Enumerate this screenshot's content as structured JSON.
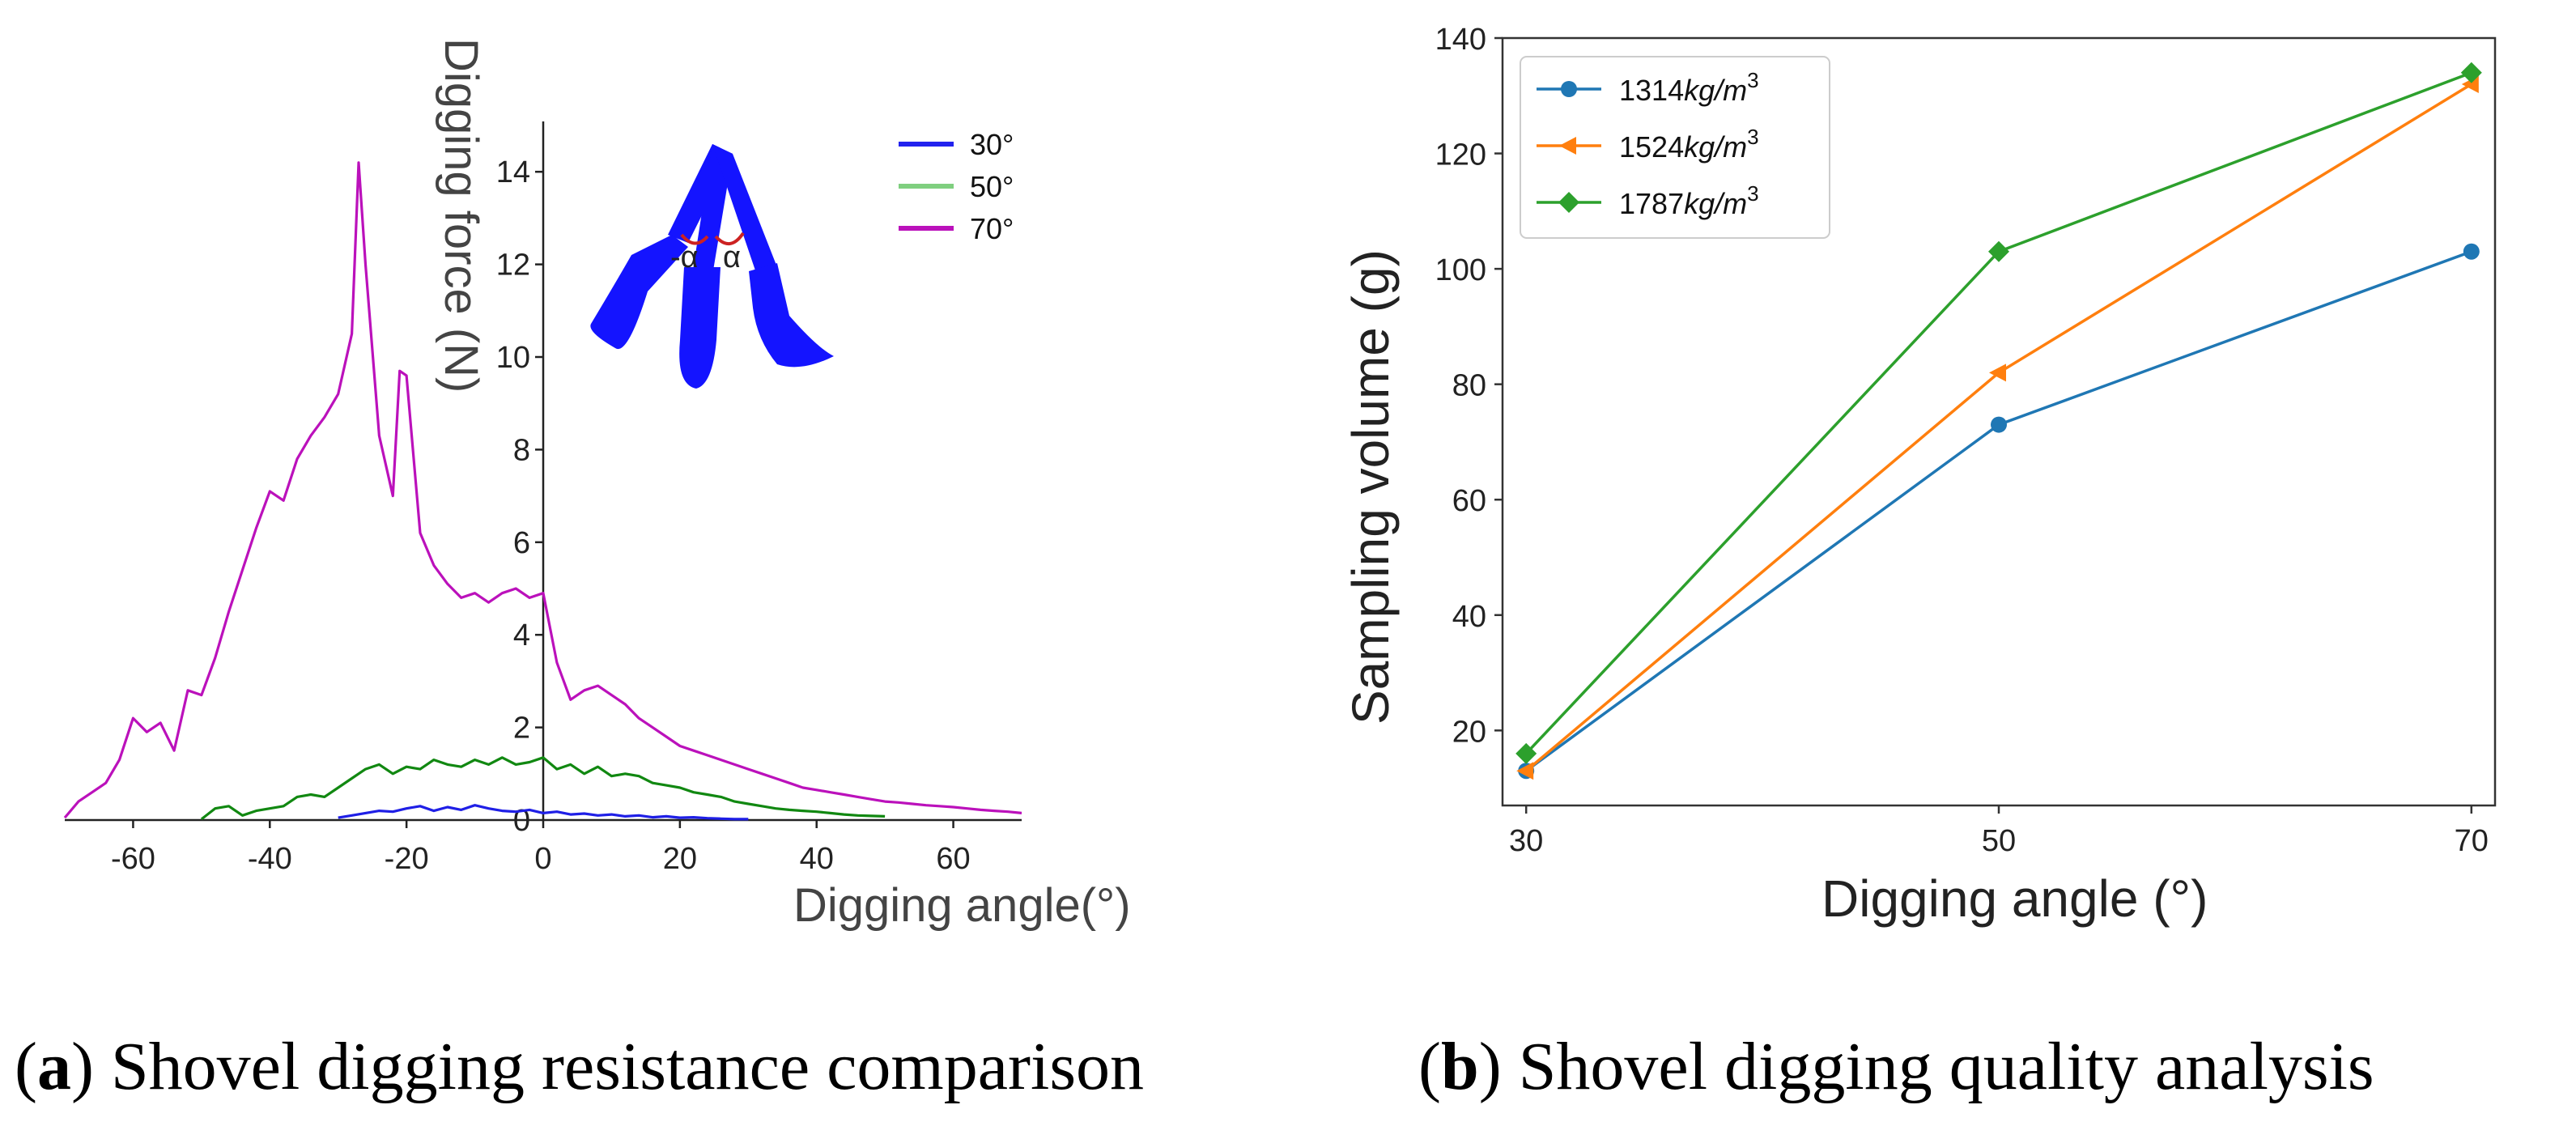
{
  "colors": {
    "s30": "#1f1fe6",
    "s50": "#118811",
    "s70": "#bb11bb",
    "l30": "#2222ee",
    "l50": "#7fcf7f",
    "l70": "#bb11bb",
    "c1314": "#1f77b4",
    "c1524": "#ff7f0e",
    "c1787": "#2ca02c"
  },
  "captions": {
    "a_letter": "a",
    "a_text": " Shovel digging resistance comparison",
    "b_letter": "b",
    "b_text": " Shovel digging quality analysis"
  },
  "chart_data": [
    {
      "type": "line",
      "panel": "a",
      "title": "",
      "xlabel": "Digging angle(°)",
      "ylabel": "Digging force (N)",
      "xlim": [
        -70,
        70
      ],
      "ylim": [
        0,
        15
      ],
      "xticks": [
        -60,
        -40,
        -20,
        0,
        20,
        40,
        60
      ],
      "xtick_labels": [
        "-60",
        "-40",
        "-20",
        "0",
        "20",
        "40",
        "60"
      ],
      "yticks": [
        2,
        4,
        6,
        8,
        10,
        12,
        14
      ],
      "ytick_labels": [
        "2",
        "4",
        "6",
        "8",
        "10",
        "12",
        "14"
      ],
      "legend": [
        "30°",
        "50°",
        "70°"
      ],
      "legend_position": "top-right",
      "inset_labels": [
        "-α",
        "α"
      ],
      "series": [
        {
          "name": "30°",
          "x": [
            -30,
            -28,
            -26,
            -24,
            -22,
            -20,
            -18,
            -16,
            -14,
            -12,
            -10,
            -8,
            -6,
            -4,
            -2,
            0,
            2,
            4,
            6,
            8,
            10,
            12,
            14,
            16,
            18,
            20,
            22,
            24,
            26,
            28,
            30
          ],
          "y": [
            0.05,
            0.1,
            0.15,
            0.2,
            0.18,
            0.25,
            0.3,
            0.2,
            0.28,
            0.22,
            0.32,
            0.25,
            0.2,
            0.18,
            0.22,
            0.15,
            0.18,
            0.12,
            0.14,
            0.1,
            0.12,
            0.08,
            0.1,
            0.06,
            0.08,
            0.05,
            0.06,
            0.04,
            0.03,
            0.02,
            0.02
          ]
        },
        {
          "name": "50°",
          "x": [
            -50,
            -48,
            -46,
            -44,
            -42,
            -40,
            -38,
            -36,
            -34,
            -32,
            -30,
            -28,
            -26,
            -24,
            -22,
            -20,
            -18,
            -16,
            -14,
            -12,
            -10,
            -8,
            -6,
            -4,
            -2,
            0,
            2,
            4,
            6,
            8,
            10,
            12,
            14,
            16,
            18,
            20,
            22,
            24,
            26,
            28,
            30,
            32,
            34,
            36,
            38,
            40,
            42,
            44,
            46,
            48,
            50
          ],
          "y": [
            0.02,
            0.25,
            0.3,
            0.1,
            0.2,
            0.25,
            0.3,
            0.5,
            0.55,
            0.5,
            0.7,
            0.9,
            1.1,
            1.2,
            1.0,
            1.15,
            1.1,
            1.3,
            1.2,
            1.15,
            1.3,
            1.2,
            1.35,
            1.2,
            1.25,
            1.35,
            1.1,
            1.2,
            1.0,
            1.15,
            0.95,
            1.0,
            0.95,
            0.8,
            0.75,
            0.7,
            0.6,
            0.55,
            0.5,
            0.4,
            0.35,
            0.3,
            0.25,
            0.22,
            0.2,
            0.18,
            0.15,
            0.12,
            0.1,
            0.09,
            0.08
          ]
        },
        {
          "name": "70°",
          "x": [
            -70,
            -68,
            -66,
            -64,
            -62,
            -60,
            -58,
            -56,
            -54,
            -52,
            -50,
            -48,
            -46,
            -44,
            -42,
            -40,
            -38,
            -36,
            -34,
            -32,
            -30,
            -28,
            -27,
            -26,
            -24,
            -22,
            -21,
            -20,
            -18,
            -16,
            -14,
            -12,
            -10,
            -8,
            -6,
            -4,
            -2,
            0,
            2,
            4,
            6,
            8,
            10,
            12,
            14,
            16,
            18,
            20,
            22,
            24,
            26,
            28,
            30,
            32,
            34,
            36,
            38,
            40,
            42,
            44,
            46,
            48,
            50,
            52,
            54,
            56,
            58,
            60,
            62,
            64,
            66,
            68,
            70
          ],
          "y": [
            0.05,
            0.4,
            0.6,
            0.8,
            1.3,
            2.2,
            1.9,
            2.1,
            1.5,
            2.8,
            2.7,
            3.5,
            4.5,
            5.4,
            6.3,
            7.1,
            6.9,
            7.8,
            8.3,
            8.7,
            9.2,
            10.5,
            14.2,
            12.0,
            8.3,
            7.0,
            9.7,
            9.6,
            6.2,
            5.5,
            5.1,
            4.8,
            4.9,
            4.7,
            4.9,
            5.0,
            4.8,
            4.9,
            3.4,
            2.6,
            2.8,
            2.9,
            2.7,
            2.5,
            2.2,
            2.0,
            1.8,
            1.6,
            1.5,
            1.4,
            1.3,
            1.2,
            1.1,
            1.0,
            0.9,
            0.8,
            0.7,
            0.65,
            0.6,
            0.55,
            0.5,
            0.45,
            0.4,
            0.38,
            0.35,
            0.32,
            0.3,
            0.28,
            0.25,
            0.22,
            0.2,
            0.18,
            0.15
          ]
        }
      ]
    },
    {
      "type": "line",
      "panel": "b",
      "title": "",
      "xlabel": "Digging angle (°)",
      "ylabel": "Sampling volume (g)",
      "xlim": [
        29,
        71
      ],
      "ylim": [
        7,
        140
      ],
      "xticks": [
        30,
        50,
        70
      ],
      "xtick_labels": [
        "30",
        "50",
        "70"
      ],
      "yticks": [
        20,
        40,
        60,
        80,
        100,
        120,
        140
      ],
      "ytick_labels": [
        "20",
        "40",
        "60",
        "80",
        "100",
        "120",
        "140"
      ],
      "legend_position": "top-left",
      "series": [
        {
          "name": "1314kg/m3",
          "label_num": "1314",
          "label_unit": "kg/m",
          "label_exp": "3",
          "marker": "circle",
          "x": [
            30,
            50,
            70
          ],
          "values": [
            13,
            73,
            103
          ]
        },
        {
          "name": "1524kg/m3",
          "label_num": "1524",
          "label_unit": "kg/m",
          "label_exp": "3",
          "marker": "triangle-left",
          "x": [
            30,
            50,
            70
          ],
          "values": [
            13,
            82,
            132
          ]
        },
        {
          "name": "1787kg/m3",
          "label_num": "1787",
          "label_unit": "kg/m",
          "label_exp": "3",
          "marker": "diamond",
          "x": [
            30,
            50,
            70
          ],
          "values": [
            16,
            103,
            134
          ]
        }
      ]
    }
  ]
}
